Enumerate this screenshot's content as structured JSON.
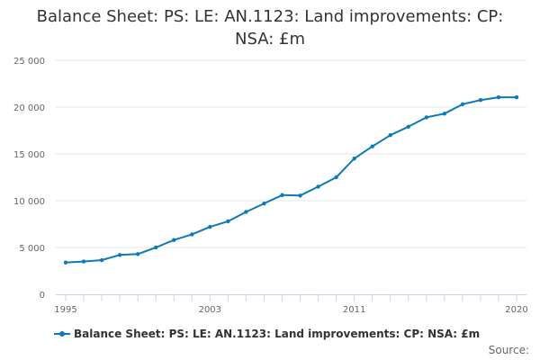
{
  "chart_data": {
    "type": "line",
    "title": "Balance Sheet: PS: LE: AN.1123: Land improvements: CP: NSA: £m",
    "xlabel": "",
    "ylabel": "",
    "x": [
      1995,
      1996,
      1997,
      1998,
      1999,
      2000,
      2001,
      2002,
      2003,
      2004,
      2005,
      2006,
      2007,
      2008,
      2009,
      2010,
      2011,
      2012,
      2013,
      2014,
      2015,
      2016,
      2017,
      2018,
      2019,
      2020
    ],
    "series": [
      {
        "name": "Balance Sheet: PS: LE: AN.1123: Land improvements: CP: NSA: £m",
        "color": "#0c7bb5",
        "values": [
          3400,
          3500,
          3650,
          4200,
          4300,
          5000,
          5800,
          6400,
          7200,
          7800,
          8800,
          9700,
          10600,
          10550,
          11500,
          12500,
          14500,
          15800,
          17000,
          17900,
          18900,
          19300,
          20300,
          20750,
          21050,
          21050
        ]
      }
    ],
    "xticks": [
      1995,
      2003,
      2011,
      2020
    ],
    "xtick_labels": [
      "1995",
      "2003",
      "2011",
      "2020"
    ],
    "yticks": [
      0,
      5000,
      10000,
      15000,
      20000,
      25000
    ],
    "ytick_labels": [
      "0",
      "5 000",
      "10 000",
      "15 000",
      "20 000",
      "25 000"
    ],
    "ylim": [
      0,
      25000
    ],
    "xlim": [
      1995,
      2020
    ],
    "grid": true,
    "legend_position": "bottom"
  },
  "source_label": "Source:"
}
